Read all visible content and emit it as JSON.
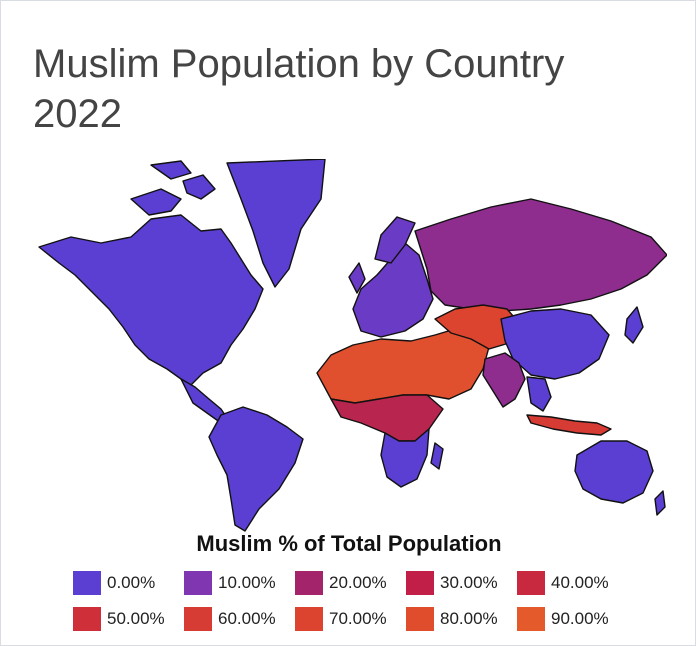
{
  "title": "Muslim Population by Country 2022",
  "legend": {
    "title": "Muslim % of Total Population",
    "items": [
      {
        "label": "0.00%",
        "color": "#5b3fd2"
      },
      {
        "label": "10.00%",
        "color": "#7f36b0"
      },
      {
        "label": "20.00%",
        "color": "#a3246a"
      },
      {
        "label": "30.00%",
        "color": "#c21f48"
      },
      {
        "label": "40.00%",
        "color": "#c9293e"
      },
      {
        "label": "50.00%",
        "color": "#cf2f38"
      },
      {
        "label": "60.00%",
        "color": "#d63b34"
      },
      {
        "label": "70.00%",
        "color": "#dc4430"
      },
      {
        "label": "80.00%",
        "color": "#e04d2c"
      },
      {
        "label": "90.00%",
        "color": "#e45a2a"
      }
    ]
  },
  "map": {
    "regions": [
      {
        "id": "north-america",
        "color": "#5b3fd2"
      },
      {
        "id": "greenland",
        "color": "#5b3fd2"
      },
      {
        "id": "south-america",
        "color": "#5b3fd2"
      },
      {
        "id": "europe",
        "color": "#6a3bc4"
      },
      {
        "id": "russia",
        "color": "#8e2d8e"
      },
      {
        "id": "north-africa-middle-east",
        "color": "#e0502e"
      },
      {
        "id": "central-asia",
        "color": "#dc4430"
      },
      {
        "id": "sub-saharan-africa",
        "color": "#b8264f"
      },
      {
        "id": "southern-africa",
        "color": "#5b3fd2"
      },
      {
        "id": "china",
        "color": "#5b3fd2"
      },
      {
        "id": "india",
        "color": "#8e2d8e"
      },
      {
        "id": "indonesia",
        "color": "#d63b34"
      },
      {
        "id": "australia",
        "color": "#5b3fd2"
      }
    ]
  }
}
